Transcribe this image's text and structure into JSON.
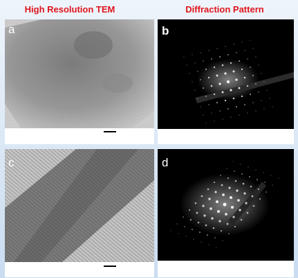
{
  "header": {
    "left": "High Resolution TEM",
    "right": "Diffraction Pattern"
  },
  "panels": [
    {
      "label": "a"
    },
    {
      "label": "b"
    },
    {
      "label": "c"
    },
    {
      "label": "d"
    }
  ]
}
